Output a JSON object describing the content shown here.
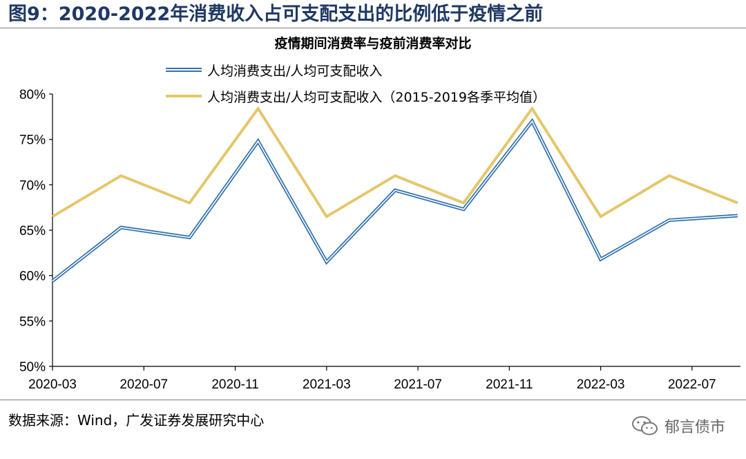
{
  "figure_title": "图9：2020-2022年消费收入占可支配支出的比例低于疫情之前",
  "source_note": "数据来源：Wind，广发证券发展研究中心",
  "watermark": "郁言债市",
  "watermark_icon": "wechat-icon",
  "colors": {
    "series_blue": "#2f6fad",
    "series_gold": "#e3c76a",
    "title_navy": "#1f3864"
  },
  "chart_data": {
    "type": "line",
    "title": "疫情期间消费率与疫前消费率对比",
    "xlabel": "",
    "ylabel": "",
    "ylim": [
      50,
      80
    ],
    "y_ticks": [
      50,
      55,
      60,
      65,
      70,
      75,
      80
    ],
    "y_tick_labels": [
      "50%",
      "55%",
      "60%",
      "65%",
      "70%",
      "75%",
      "80%"
    ],
    "x": [
      "2020-03",
      "2020-06",
      "2020-09",
      "2020-12",
      "2021-03",
      "2021-06",
      "2021-09",
      "2021-12",
      "2022-03",
      "2022-06",
      "2022-09"
    ],
    "x_tick_labels": [
      "2020-03",
      "2020-07",
      "2020-11",
      "2021-03",
      "2021-07",
      "2021-11",
      "2022-03",
      "2022-07"
    ],
    "grid": false,
    "legend_position": "top-left",
    "series": [
      {
        "name": "人均消费支出/人均可支配收入",
        "values": [
          59.4,
          65.3,
          64.2,
          74.8,
          61.5,
          69.4,
          67.3,
          77.0,
          61.8,
          66.1,
          66.6
        ]
      },
      {
        "name": "人均消费支出/人均可支配收入（2015-2019各季平均值）",
        "values": [
          66.5,
          71.0,
          68.0,
          78.4,
          66.5,
          71.0,
          68.0,
          78.4,
          66.5,
          71.0,
          68.0
        ]
      }
    ]
  }
}
